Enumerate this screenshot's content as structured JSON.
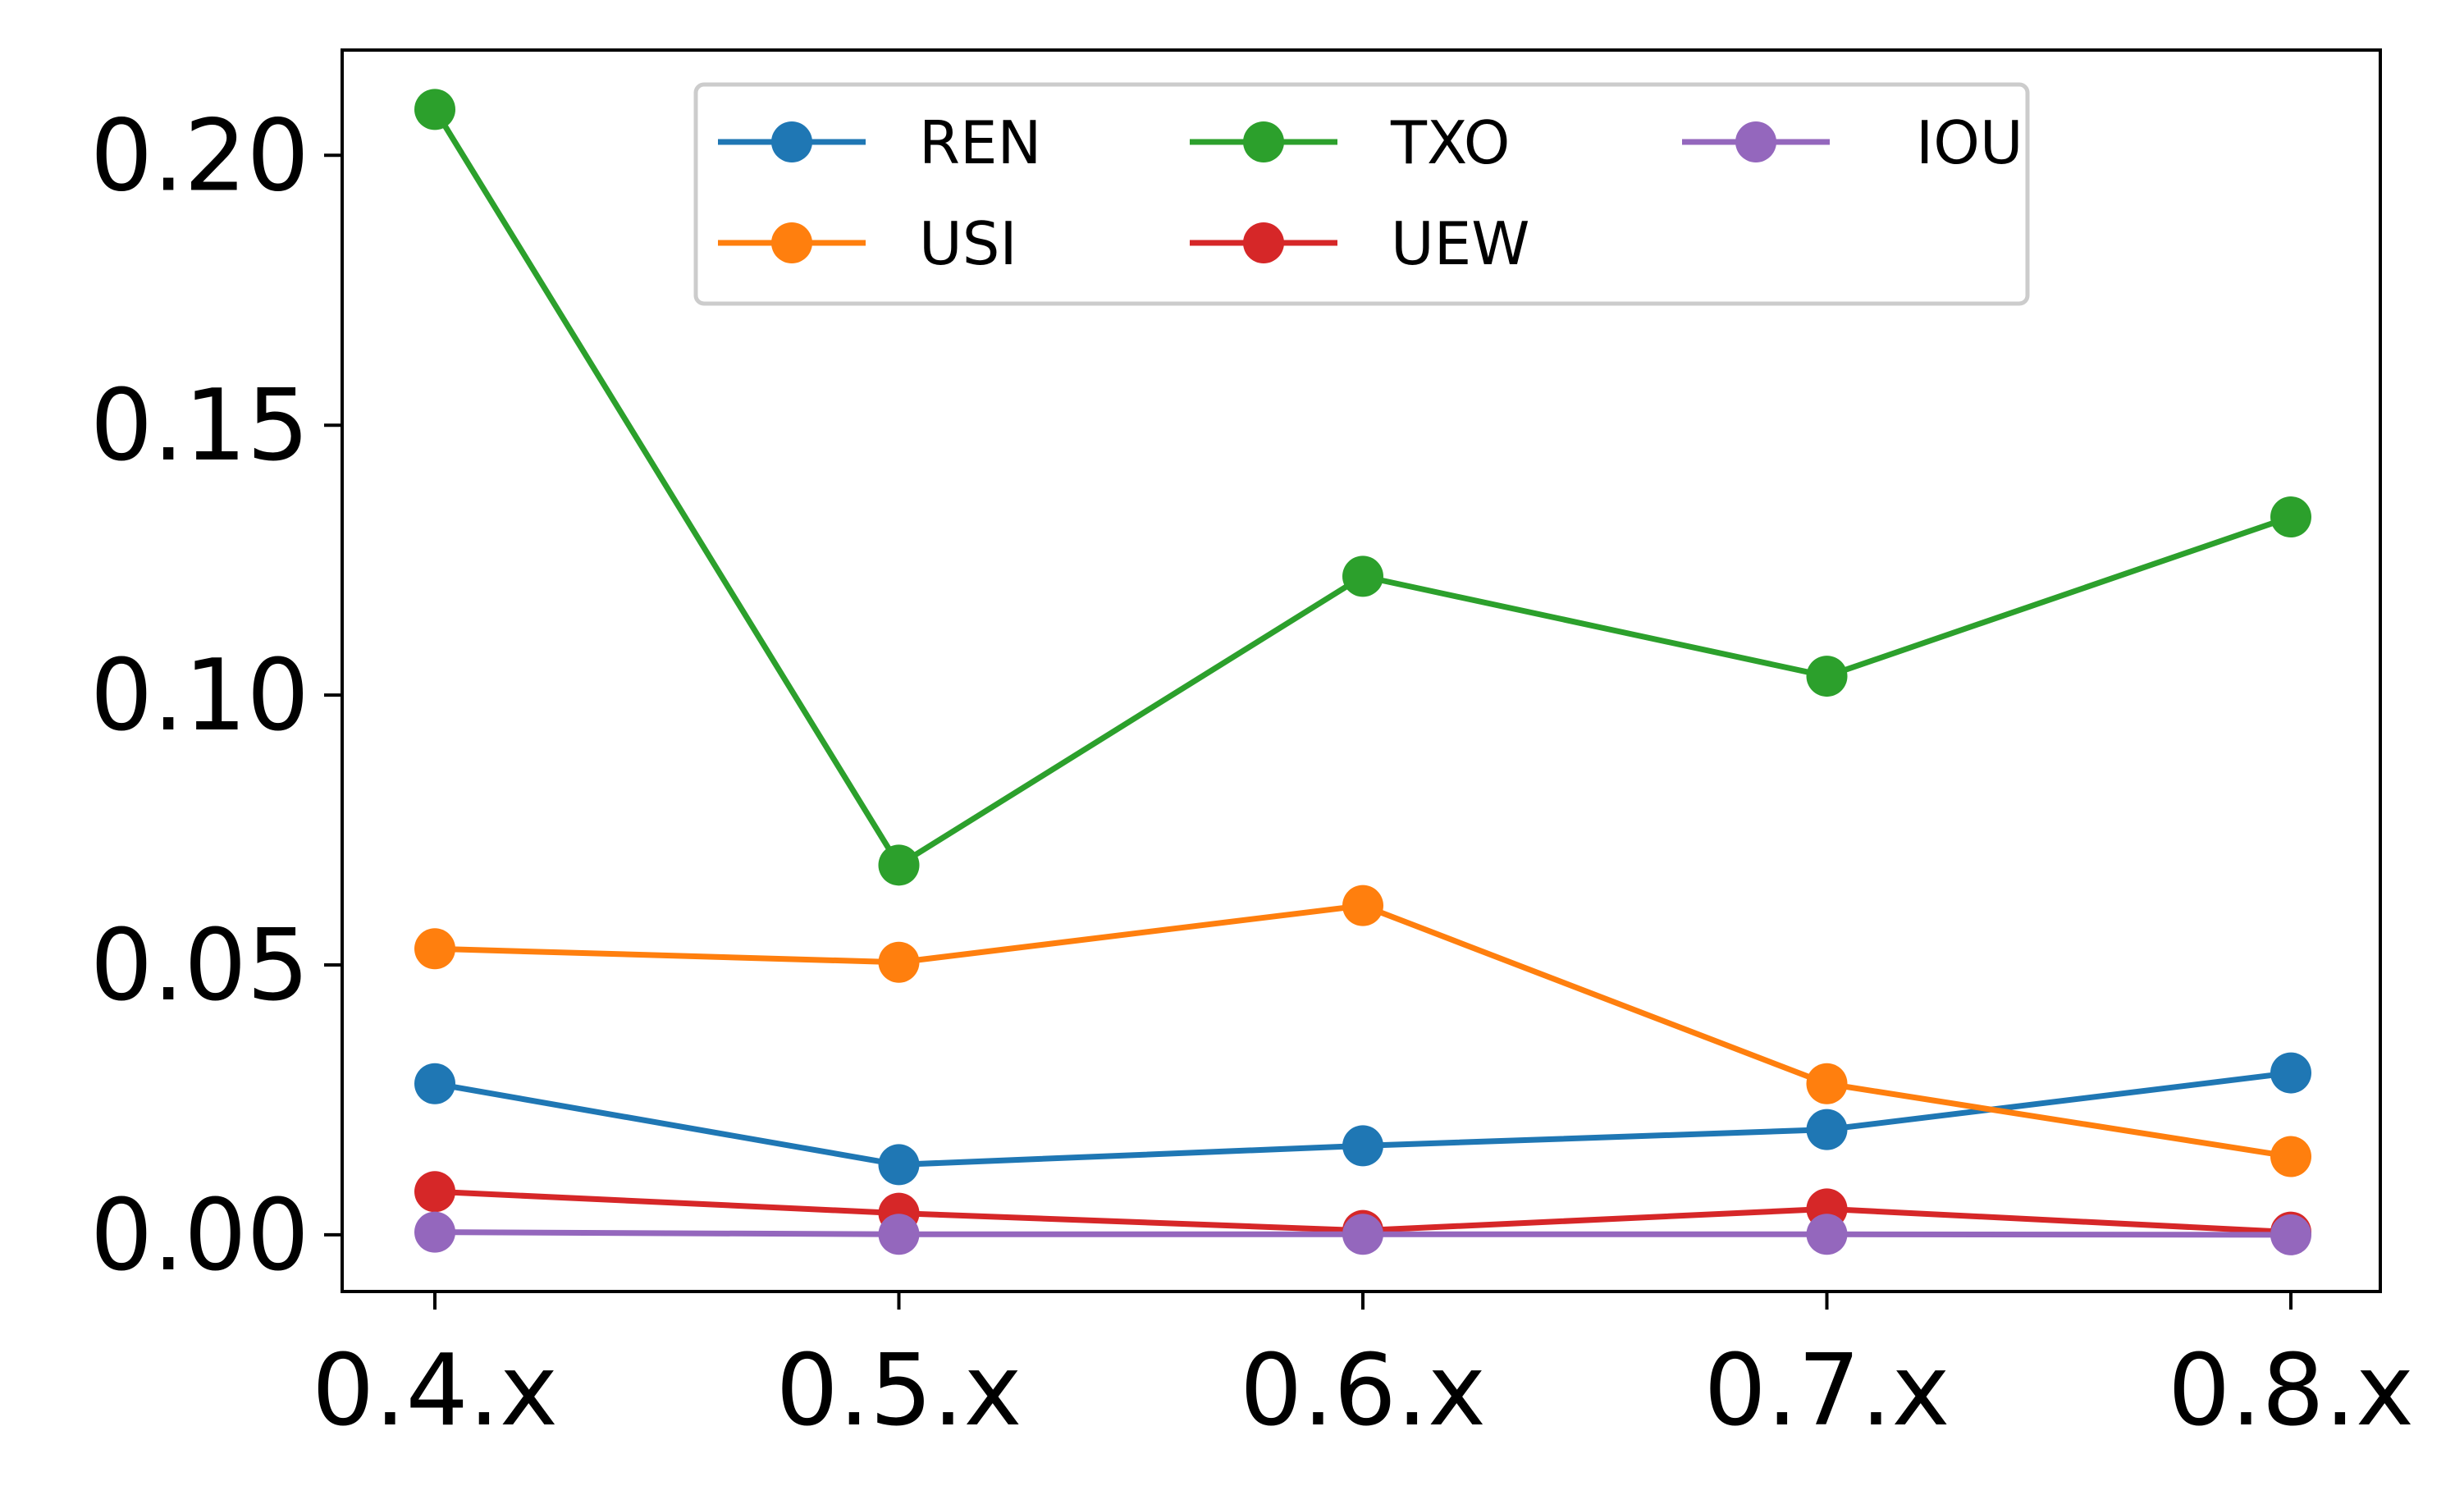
{
  "chart_data": {
    "type": "line",
    "title": "",
    "xlabel": "",
    "ylabel": "",
    "categories": [
      "0.4.x",
      "0.5.x",
      "0.6.x",
      "0.7.x",
      "0.8.x"
    ],
    "ylim": [
      -0.0105,
      0.2195
    ],
    "yticks": [
      0.0,
      0.05,
      0.1,
      0.15,
      0.2
    ],
    "ytick_labels": [
      "0.00",
      "0.05",
      "0.10",
      "0.15",
      "0.20"
    ],
    "grid": false,
    "legend": {
      "placement": "top-center",
      "columns": 3
    },
    "series": [
      {
        "name": "REN",
        "color": "#1f77b4",
        "values": [
          0.028,
          0.013,
          0.0165,
          0.0195,
          0.03
        ]
      },
      {
        "name": "USI",
        "color": "#ff7f0e",
        "values": [
          0.053,
          0.0505,
          0.061,
          0.028,
          0.0145
        ]
      },
      {
        "name": "TXO",
        "color": "#2ca02c",
        "values": [
          0.2085,
          0.0685,
          0.122,
          0.1035,
          0.133
        ]
      },
      {
        "name": "UEW",
        "color": "#d62728",
        "values": [
          0.008,
          0.004,
          0.0008,
          0.0048,
          0.0005
        ]
      },
      {
        "name": "IOU",
        "color": "#9467bd",
        "values": [
          0.0005,
          0.0001,
          0.0001,
          0.0001,
          0.0
        ]
      }
    ]
  }
}
